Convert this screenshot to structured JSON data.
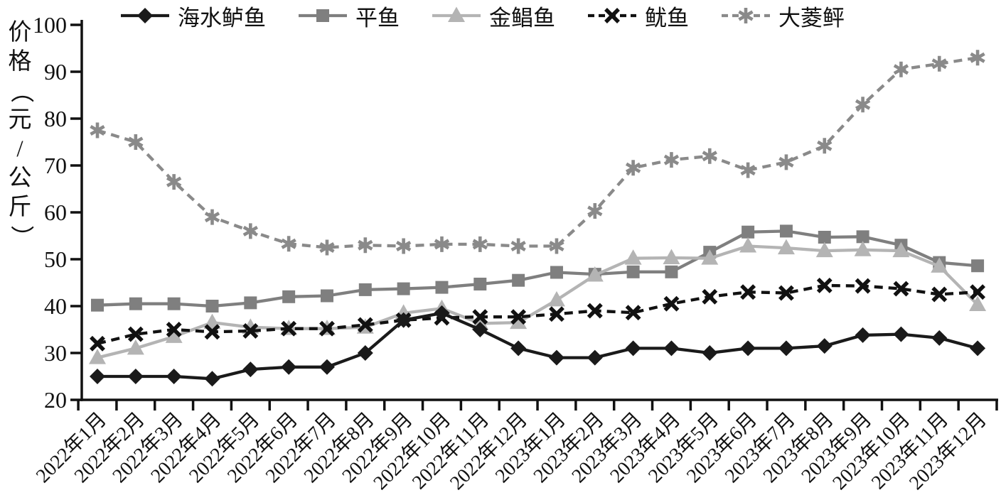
{
  "figure": {
    "background": "#ffffff",
    "axis_color": "#111111"
  },
  "chart_data": {
    "type": "line",
    "title": "",
    "xlabel": "",
    "ylabel": "价格（元/公斤）",
    "ylim": [
      20,
      100
    ],
    "ytick_step": 10,
    "yticks": [
      100,
      90,
      80,
      70,
      60,
      50,
      40,
      30,
      20
    ],
    "grid": false,
    "legend_position": "top",
    "categories": [
      "2022年1月",
      "2022年2月",
      "2022年3月",
      "2022年4月",
      "2022年5月",
      "2022年6月",
      "2022年7月",
      "2022年8月",
      "2022年9月",
      "2022年10月",
      "2022年11月",
      "2022年12月",
      "2023年1月",
      "2023年2月",
      "2023年3月",
      "2023年4月",
      "2023年5月",
      "2023年6月",
      "2023年7月",
      "2023年8月",
      "2023年9月",
      "2023年10月",
      "2023年11月",
      "2023年12月"
    ],
    "series": [
      {
        "name": "海水鲈鱼",
        "marker": "diamond",
        "line": "solid",
        "color": "#1a1a1a",
        "values": [
          25,
          25,
          25,
          24.5,
          26.5,
          27,
          27,
          30,
          37,
          38.5,
          35,
          31,
          29,
          29,
          31,
          31,
          30,
          31,
          31,
          31.5,
          33.8,
          34,
          33.2,
          31
        ]
      },
      {
        "name": "平鱼",
        "marker": "square",
        "line": "solid",
        "color": "#7f7f7f",
        "values": [
          40.2,
          40.5,
          40.5,
          40,
          40.7,
          42,
          42.2,
          43.5,
          43.7,
          44,
          44.7,
          45.5,
          47.2,
          46.8,
          47.3,
          47.3,
          51.5,
          55.8,
          56,
          54.7,
          54.8,
          53,
          49.3,
          48.6
        ]
      },
      {
        "name": "金鲳鱼",
        "marker": "triangle",
        "line": "solid",
        "color": "#b4b4b4",
        "values": [
          29,
          31,
          33.5,
          36.5,
          35.5,
          35.2,
          35.2,
          35.5,
          38.5,
          39.5,
          36.3,
          36.5,
          41.3,
          46.6,
          50.2,
          50.3,
          50.2,
          52.8,
          52.4,
          51.8,
          52,
          51.8,
          48.5,
          40.3
        ]
      },
      {
        "name": "鱿鱼",
        "marker": "x",
        "line": "dashed",
        "color": "#111111",
        "values": [
          32,
          34,
          35,
          34.5,
          34.7,
          35.2,
          35.2,
          36,
          37,
          37.5,
          37.7,
          37.7,
          38.3,
          39,
          38.6,
          40.5,
          42,
          43,
          42.8,
          44.4,
          44.3,
          43.7,
          42.5,
          43
        ]
      },
      {
        "name": "大菱鲆",
        "marker": "asterisk",
        "line": "dashed",
        "color": "#8a8a8a",
        "values": [
          77.5,
          75,
          66.5,
          59,
          56,
          53.3,
          52.5,
          53,
          52.8,
          53.2,
          53.2,
          52.8,
          52.8,
          60.3,
          69.5,
          71.2,
          72,
          69,
          70.7,
          74.2,
          83,
          90.5,
          91.7,
          93
        ]
      }
    ]
  }
}
